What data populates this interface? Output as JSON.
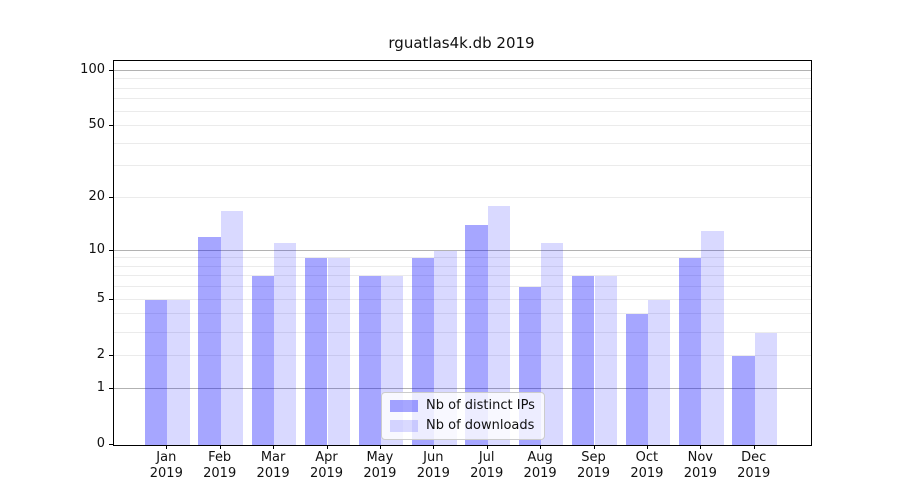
{
  "title": "rguatlas4k.db 2019",
  "y_axis": {
    "tick_values": [
      0,
      1,
      2,
      5,
      10,
      20,
      50,
      100
    ],
    "tick_labels": [
      "0",
      "1",
      "2",
      "5",
      "10",
      "20",
      "50",
      "100"
    ],
    "major_gridlines": [
      1,
      10,
      100
    ],
    "minor_gridlines": [
      2,
      3,
      4,
      5,
      6,
      7,
      8,
      9,
      20,
      30,
      40,
      50,
      60,
      70,
      80,
      90
    ]
  },
  "x_axis": {
    "months": [
      "Jan",
      "Feb",
      "Mar",
      "Apr",
      "May",
      "Jun",
      "Jul",
      "Aug",
      "Sep",
      "Oct",
      "Nov",
      "Dec"
    ],
    "year": "2019"
  },
  "legend": {
    "items": [
      {
        "label": "Nb of distinct IPs",
        "color": "rgba(0,0,255,0.35)"
      },
      {
        "label": "Nb of downloads",
        "color": "rgba(0,0,255,0.15)"
      }
    ]
  },
  "colors": {
    "bar_distinct_ips": "rgba(0,0,255,0.35)",
    "bar_downloads": "rgba(0,0,255,0.15)",
    "major_grid": "#b2b2b2",
    "minor_grid": "#ebebeb",
    "axis": "#000000",
    "text": "#111111"
  },
  "chart_data": {
    "type": "bar",
    "title": "rguatlas4k.db 2019",
    "categories": [
      "Jan 2019",
      "Feb 2019",
      "Mar 2019",
      "Apr 2019",
      "May 2019",
      "Jun 2019",
      "Jul 2019",
      "Aug 2019",
      "Sep 2019",
      "Oct 2019",
      "Nov 2019",
      "Dec 2019"
    ],
    "series": [
      {
        "name": "Nb of distinct IPs",
        "values": [
          5,
          12,
          7,
          9,
          7,
          9,
          14,
          6,
          7,
          4,
          9,
          2
        ]
      },
      {
        "name": "Nb of downloads",
        "values": [
          5,
          17,
          11,
          9,
          7,
          10,
          18,
          11,
          7,
          5,
          13,
          3
        ]
      }
    ],
    "yscale": "log10(1+y)",
    "ylim": [
      0,
      113
    ],
    "ytick_values": [
      0,
      1,
      2,
      5,
      10,
      20,
      50,
      100
    ],
    "xlabel": "",
    "ylabel": "",
    "grid": true,
    "legend_position": "inside lower center"
  }
}
